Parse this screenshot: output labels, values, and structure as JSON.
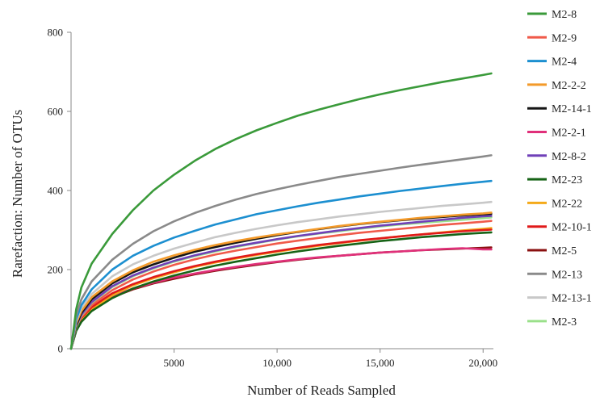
{
  "chart_data": {
    "type": "line",
    "xlabel": "Number of Reads Sampled",
    "ylabel": "Rarefaction: Number of OTUs",
    "xlim": [
      0,
      20500
    ],
    "ylim": [
      0,
      800
    ],
    "x_ticks": [
      5000,
      10000,
      15000,
      20000
    ],
    "x_tick_labels": [
      "5000",
      "10,000",
      "15,000",
      "20,000"
    ],
    "y_ticks": [
      0,
      200,
      400,
      600,
      800
    ],
    "y_tick_labels": [
      "0",
      "200",
      "400",
      "600",
      "800"
    ],
    "legend_position": "right",
    "grid": false,
    "x": [
      0,
      250,
      500,
      1000,
      2000,
      3000,
      4000,
      5000,
      6000,
      7000,
      8000,
      9000,
      10000,
      11000,
      12000,
      13000,
      14000,
      15000,
      16000,
      17000,
      18000,
      19000,
      20000,
      20400
    ],
    "series": [
      {
        "name": "M2-8",
        "color": "#3a9a3a",
        "values": [
          0,
          100,
          155,
          215,
          290,
          350,
          400,
          440,
          475,
          505,
          530,
          552,
          571,
          589,
          604,
          618,
          631,
          643,
          654,
          664,
          674,
          683,
          692,
          696
        ]
      },
      {
        "name": "M2-9",
        "color": "#f05a4a",
        "values": [
          0,
          55,
          80,
          110,
          148,
          175,
          195,
          212,
          226,
          238,
          248,
          257,
          266,
          273,
          280,
          287,
          293,
          298,
          303,
          308,
          313,
          317,
          321,
          323
        ]
      },
      {
        "name": "M2-4",
        "color": "#1c8fd0",
        "values": [
          0,
          75,
          110,
          150,
          200,
          235,
          260,
          281,
          298,
          314,
          327,
          340,
          350,
          360,
          369,
          377,
          385,
          392,
          399,
          405,
          411,
          417,
          422,
          424
        ]
      },
      {
        "name": "M2-2-2",
        "color": "#f39a2a",
        "values": [
          0,
          65,
          95,
          130,
          170,
          198,
          220,
          236,
          250,
          262,
          272,
          281,
          289,
          296,
          303,
          310,
          316,
          321,
          326,
          331,
          335,
          339,
          342,
          344
        ]
      },
      {
        "name": "M2-14-1",
        "color": "#151515",
        "values": [
          0,
          60,
          90,
          125,
          165,
          193,
          213,
          230,
          245,
          257,
          268,
          278,
          287,
          295,
          302,
          309,
          315,
          320,
          325,
          329,
          333,
          337,
          340,
          341
        ]
      },
      {
        "name": "M2-2-1",
        "color": "#e0307a",
        "values": [
          0,
          50,
          72,
          100,
          132,
          152,
          167,
          180,
          190,
          199,
          207,
          214,
          220,
          226,
          231,
          235,
          239,
          243,
          246,
          249,
          252,
          254,
          251,
          251
        ]
      },
      {
        "name": "M2-8-2",
        "color": "#7040b8",
        "values": [
          0,
          58,
          86,
          118,
          158,
          185,
          205,
          222,
          236,
          248,
          259,
          268,
          277,
          285,
          292,
          299,
          305,
          311,
          316,
          321,
          326,
          331,
          335,
          336
        ]
      },
      {
        "name": "M2-23",
        "color": "#166316",
        "values": [
          0,
          45,
          68,
          95,
          128,
          152,
          170,
          185,
          198,
          210,
          220,
          229,
          238,
          246,
          253,
          260,
          266,
          272,
          277,
          282,
          286,
          290,
          293,
          294
        ]
      },
      {
        "name": "M2-22",
        "color": "#f4aa1a",
        "values": [
          0,
          48,
          72,
          100,
          135,
          160,
          178,
          193,
          207,
          218,
          228,
          237,
          245,
          253,
          260,
          267,
          273,
          279,
          284,
          289,
          294,
          299,
          303,
          305
        ]
      },
      {
        "name": "M2-10-1",
        "color": "#e01a1a",
        "values": [
          0,
          52,
          78,
          105,
          140,
          163,
          181,
          196,
          209,
          220,
          230,
          239,
          247,
          255,
          262,
          268,
          274,
          279,
          284,
          289,
          293,
          297,
          300,
          301
        ]
      },
      {
        "name": "M2-5",
        "color": "#8a1010",
        "values": [
          0,
          48,
          70,
          98,
          130,
          150,
          165,
          177,
          188,
          197,
          205,
          212,
          219,
          225,
          230,
          235,
          239,
          243,
          246,
          249,
          251,
          253,
          255,
          256
        ]
      },
      {
        "name": "M2-13",
        "color": "#8a8a8a",
        "values": [
          0,
          85,
          125,
          170,
          225,
          265,
          297,
          322,
          343,
          361,
          377,
          391,
          403,
          414,
          424,
          434,
          442,
          450,
          458,
          465,
          472,
          479,
          486,
          489
        ]
      },
      {
        "name": "M2-13-1",
        "color": "#c8c8c8",
        "values": [
          0,
          70,
          103,
          138,
          183,
          213,
          235,
          253,
          268,
          282,
          293,
          303,
          312,
          320,
          327,
          334,
          340,
          346,
          351,
          356,
          361,
          365,
          369,
          371
        ]
      },
      {
        "name": "M2-3",
        "color": "#9ae08a",
        "values": [
          0,
          55,
          84,
          116,
          156,
          183,
          203,
          220,
          234,
          246,
          257,
          267,
          276,
          284,
          291,
          297,
          303,
          309,
          314,
          318,
          322,
          326,
          330,
          332
        ]
      }
    ]
  }
}
